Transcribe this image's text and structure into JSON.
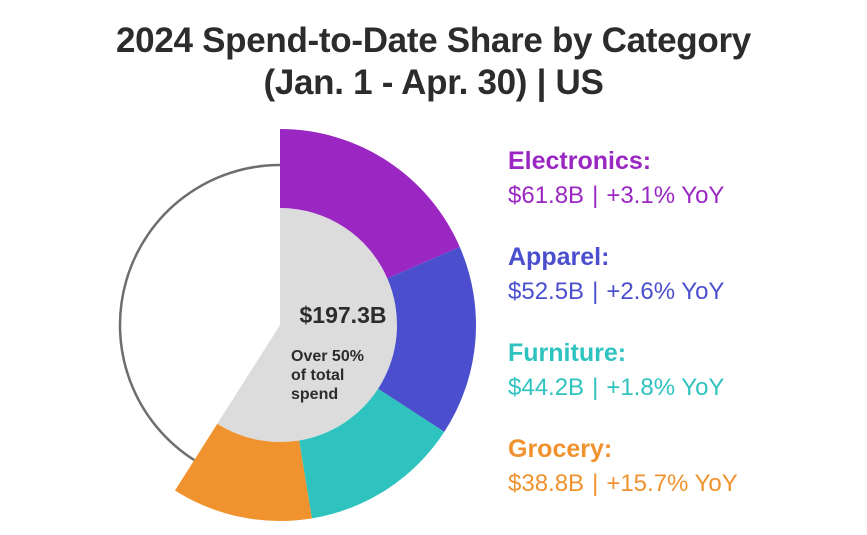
{
  "title": {
    "line1": "2024 Spend-to-Date Share by Category",
    "line2": "(Jan. 1 - Apr. 30)  |  US"
  },
  "center": {
    "total": "$197.3B",
    "caption_lines": [
      "Over 50%",
      "of total",
      "spend"
    ]
  },
  "colors": {
    "electronics": "#9b27c3",
    "apparel": "#4b4fce",
    "furniture": "#2fc3c0",
    "grocery": "#f0922e",
    "center_fill": "#dcdcdc",
    "remainder_outline": "#6e6e6e"
  },
  "chart_data": {
    "type": "pie",
    "title": "2024 Spend-to-Date Share by Category (Jan. 1 - Apr. 30) | US",
    "unit": "USD billions",
    "total_label": "$197.3B",
    "categories": [
      "Electronics",
      "Apparel",
      "Furniture",
      "Grocery"
    ],
    "values": [
      61.8,
      52.5,
      44.2,
      38.8
    ],
    "value_labels": [
      "$61.8B",
      "$52.5B",
      "$44.2B",
      "$38.8B"
    ],
    "yoy_labels": [
      "+3.1% YoY",
      "+2.6% YoY",
      "+1.8% YoY",
      "+15.7% YoY"
    ],
    "share_of_total_spend_fraction": 0.59,
    "note": "Over 50% of total spend"
  },
  "legend": [
    {
      "key": "electronics",
      "name": "Electronics:",
      "value": "$61.8B",
      "yoy": "+3.1% YoY"
    },
    {
      "key": "apparel",
      "name": "Apparel:",
      "value": "$52.5B",
      "yoy": "+2.6% YoY"
    },
    {
      "key": "furniture",
      "name": "Furniture:",
      "value": "$44.2B",
      "yoy": "+1.8% YoY"
    },
    {
      "key": "grocery",
      "name": "Grocery:",
      "value": "$38.8B",
      "yoy": "+15.7% YoY"
    }
  ],
  "separator": "|"
}
